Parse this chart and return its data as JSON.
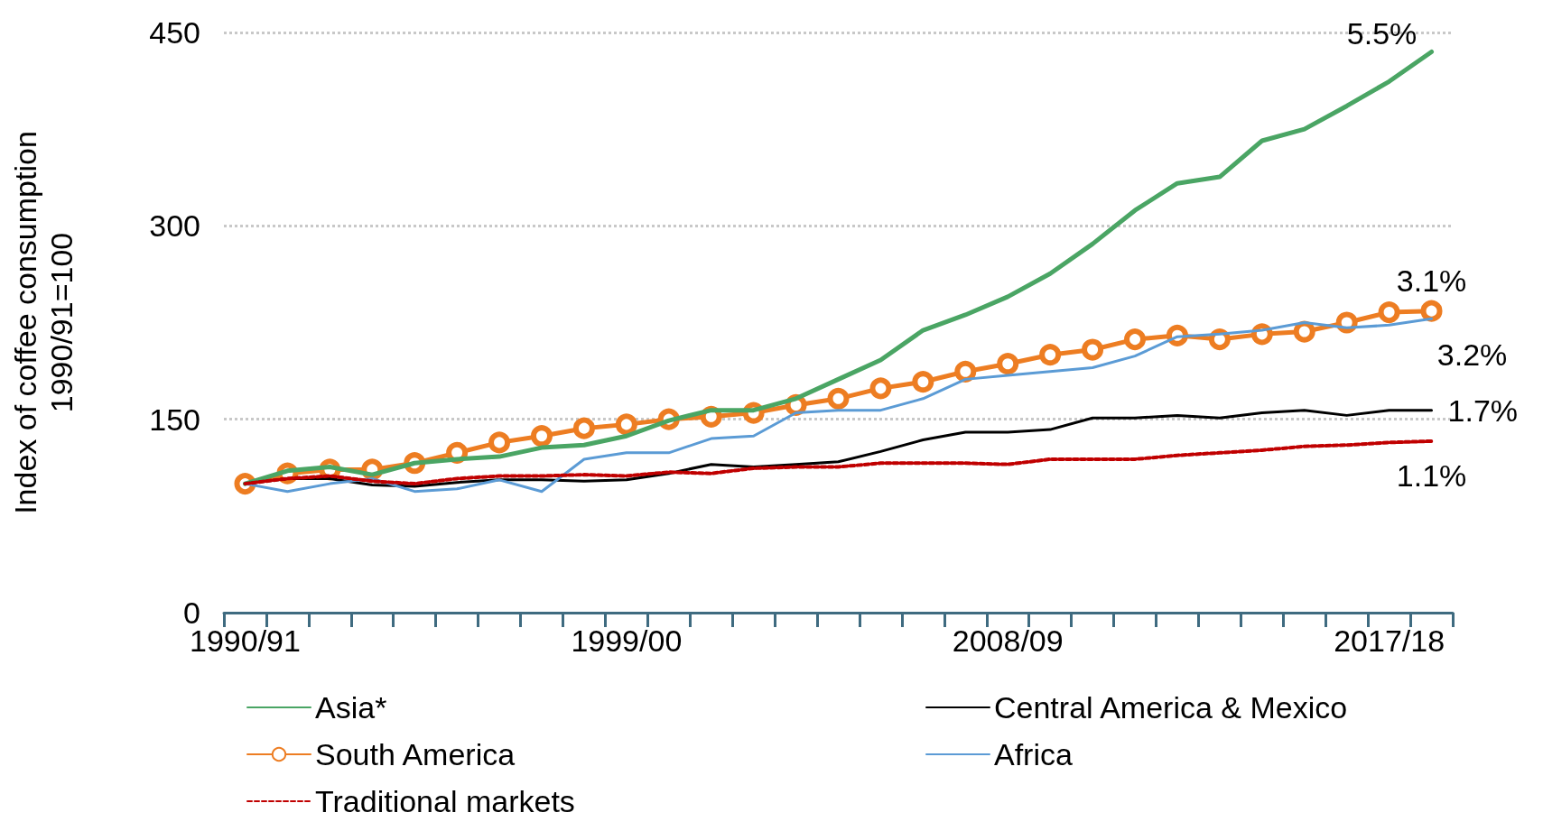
{
  "chart_data": {
    "type": "line",
    "ylabel": "Index of coffee consumption\n1990/91=100",
    "categories": [
      "1990/91",
      null,
      null,
      null,
      null,
      null,
      null,
      null,
      null,
      "1999/00",
      null,
      null,
      null,
      null,
      null,
      null,
      null,
      null,
      "2008/09",
      null,
      null,
      null,
      null,
      null,
      null,
      null,
      null,
      "2017/18",
      null
    ],
    "series": [
      {
        "name": "Asia*",
        "color": "#4aa564",
        "values": [
          100,
          110,
          113,
          107,
          116,
          119,
          121,
          128,
          130,
          137,
          149,
          157,
          157,
          166,
          181,
          196,
          219,
          231,
          245,
          263,
          286,
          312,
          333,
          338,
          366,
          375,
          393,
          412,
          435
        ]
      },
      {
        "name": "Central America & Mexico",
        "color": "#000000",
        "values": [
          100,
          104,
          104,
          99,
          98,
          101,
          103,
          103,
          102,
          103,
          108,
          115,
          113,
          115,
          117,
          125,
          134,
          140,
          140,
          142,
          151,
          151,
          153,
          151,
          155,
          157,
          153,
          157,
          157
        ]
      },
      {
        "name": "South America",
        "color": "#ed7d22",
        "marker": "circle",
        "values": [
          100,
          108,
          111,
          111,
          116,
          124,
          132,
          137,
          143,
          146,
          150,
          152,
          155,
          161,
          166,
          174,
          179,
          187,
          193,
          200,
          204,
          212,
          215,
          212,
          216,
          218,
          225,
          233,
          234
        ]
      },
      {
        "name": "Africa",
        "color": "#5b9bd5",
        "values": [
          100,
          94,
          100,
          104,
          94,
          96,
          103,
          94,
          119,
          124,
          124,
          135,
          137,
          155,
          157,
          157,
          166,
          181,
          184,
          187,
          190,
          199,
          214,
          216,
          219,
          225,
          221,
          223,
          228
        ]
      },
      {
        "name": "Traditional markets",
        "color": "#c00000",
        "line_style": "dashed",
        "values": [
          100,
          104,
          106,
          102,
          100,
          104,
          106,
          106,
          107,
          106,
          109,
          108,
          112,
          113,
          113,
          116,
          116,
          116,
          115,
          119,
          119,
          119,
          122,
          124,
          126,
          129,
          130,
          132,
          133
        ]
      }
    ],
    "ylim": [
      0,
      450
    ],
    "yticks": [
      0,
      150,
      300,
      450
    ],
    "grid": "y",
    "legend": "bottom",
    "marker": "none",
    "line_style": "solid",
    "annotations": [
      "5.5%",
      "3.1%",
      "3.2%",
      "1.7%",
      "1.1%"
    ]
  }
}
